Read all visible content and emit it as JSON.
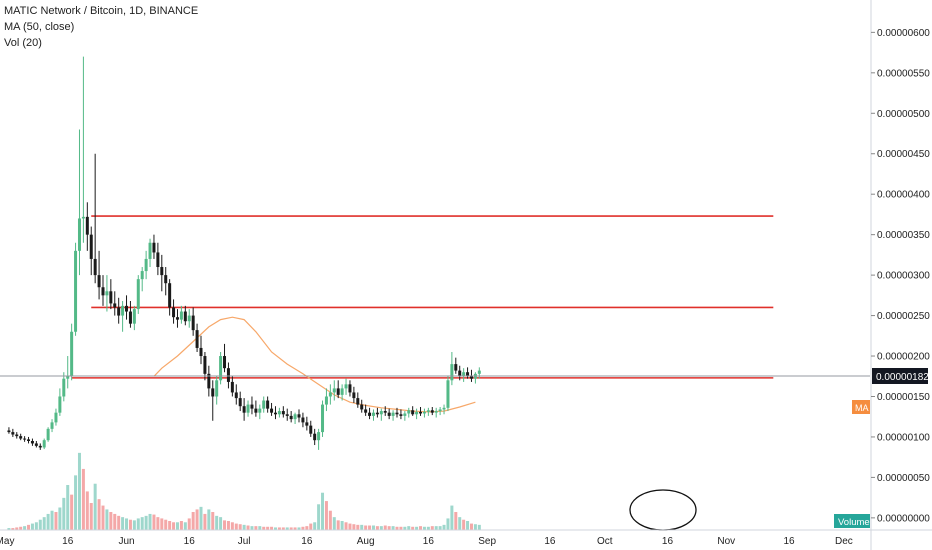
{
  "chart": {
    "title": "MATIC Network / Bitcoin, 1D, BINANCE",
    "indicators": [
      "MA (50, close)",
      "Vol (20)"
    ],
    "current_price_label": "0.00000182",
    "ma_tag": "MA",
    "volume_tag": "Volume"
  },
  "colors": {
    "up": "#53b987",
    "down": "#1a1a1a",
    "vol_up": "#9ed7cc",
    "vol_down": "#f4a8a8",
    "ma": "#f7a86a",
    "hline": "#e0302b",
    "price_tag_bg": "#131722",
    "ma_tag_bg": "#f58d3f",
    "volume_tag_bg": "#26a69a",
    "crosshair": "#9598a1"
  },
  "chart_data": {
    "type": "candlestick",
    "title": "MATIC Network / Bitcoin, 1D, BINANCE",
    "y_ticks": [
      "0.00000600",
      "0.00000550",
      "0.00000500",
      "0.00000450",
      "0.00000400",
      "0.00000350",
      "0.00000300",
      "0.00000250",
      "0.00000200",
      "0.00000150",
      "0.00000100",
      "0.00000050",
      "0.00000000"
    ],
    "y_tick_values": [
      600,
      550,
      500,
      450,
      400,
      350,
      300,
      250,
      200,
      150,
      100,
      50,
      0
    ],
    "y_unit_scale": 1e-08,
    "ylim": [
      -15,
      640
    ],
    "x_ticks": [
      "May",
      "16",
      "Jun",
      "16",
      "Jul",
      "16",
      "Aug",
      "16",
      "Sep",
      "16",
      "Oct",
      "16",
      "Nov",
      "16",
      "Dec"
    ],
    "x_tick_days": [
      0,
      16,
      31,
      47,
      61,
      77,
      92,
      108,
      123,
      139,
      153,
      169,
      184,
      200,
      214
    ],
    "xlim": [
      0,
      238
    ],
    "current_price": 182,
    "horizontal_lines": [
      373,
      260,
      173
    ],
    "candles": [
      [
        1,
        108,
        112,
        104,
        106
      ],
      [
        2,
        106,
        110,
        100,
        103
      ],
      [
        3,
        103,
        106,
        98,
        101
      ],
      [
        4,
        101,
        104,
        96,
        98
      ],
      [
        5,
        98,
        101,
        94,
        97
      ],
      [
        6,
        97,
        100,
        92,
        95
      ],
      [
        7,
        95,
        98,
        89,
        92
      ],
      [
        8,
        92,
        95,
        87,
        89
      ],
      [
        9,
        89,
        92,
        84,
        87
      ],
      [
        10,
        87,
        98,
        85,
        96
      ],
      [
        11,
        96,
        112,
        94,
        110
      ],
      [
        12,
        110,
        122,
        106,
        118
      ],
      [
        13,
        118,
        135,
        114,
        130
      ],
      [
        14,
        130,
        160,
        126,
        150
      ],
      [
        15,
        150,
        180,
        144,
        172
      ],
      [
        16,
        172,
        200,
        160,
        175
      ],
      [
        17,
        175,
        240,
        170,
        230
      ],
      [
        18,
        230,
        340,
        225,
        330
      ],
      [
        19,
        330,
        480,
        300,
        370
      ],
      [
        20,
        370,
        570,
        340,
        372
      ],
      [
        21,
        372,
        390,
        330,
        350
      ],
      [
        22,
        350,
        360,
        300,
        320
      ],
      [
        23,
        320,
        450,
        290,
        300
      ],
      [
        24,
        300,
        330,
        270,
        285
      ],
      [
        25,
        285,
        300,
        262,
        275
      ],
      [
        26,
        275,
        300,
        255,
        280
      ],
      [
        27,
        280,
        295,
        258,
        265
      ],
      [
        28,
        265,
        280,
        250,
        260
      ],
      [
        29,
        260,
        272,
        240,
        250
      ],
      [
        30,
        250,
        268,
        230,
        262
      ],
      [
        31,
        262,
        275,
        245,
        255
      ],
      [
        32,
        255,
        268,
        235,
        240
      ],
      [
        33,
        240,
        262,
        232,
        258
      ],
      [
        34,
        258,
        300,
        252,
        295
      ],
      [
        35,
        295,
        310,
        280,
        305
      ],
      [
        36,
        305,
        330,
        295,
        320
      ],
      [
        37,
        320,
        345,
        310,
        340
      ],
      [
        38,
        340,
        350,
        320,
        328
      ],
      [
        39,
        328,
        340,
        300,
        310
      ],
      [
        40,
        310,
        325,
        280,
        300
      ],
      [
        41,
        300,
        310,
        275,
        290
      ],
      [
        42,
        290,
        295,
        250,
        260
      ],
      [
        43,
        260,
        270,
        240,
        248
      ],
      [
        44,
        248,
        258,
        235,
        245
      ],
      [
        45,
        245,
        262,
        240,
        255
      ],
      [
        46,
        255,
        262,
        238,
        243
      ],
      [
        47,
        243,
        258,
        235,
        250
      ],
      [
        48,
        250,
        260,
        225,
        232
      ],
      [
        49,
        232,
        240,
        205,
        210
      ],
      [
        50,
        210,
        225,
        190,
        200
      ],
      [
        51,
        200,
        205,
        170,
        178
      ],
      [
        52,
        178,
        188,
        150,
        160
      ],
      [
        53,
        160,
        170,
        120,
        150
      ],
      [
        54,
        150,
        175,
        140,
        170
      ],
      [
        55,
        170,
        205,
        165,
        200
      ],
      [
        56,
        200,
        215,
        180,
        185
      ],
      [
        57,
        185,
        192,
        160,
        168
      ],
      [
        58,
        168,
        175,
        150,
        155
      ],
      [
        59,
        155,
        165,
        140,
        148
      ],
      [
        60,
        148,
        156,
        132,
        138
      ],
      [
        61,
        138,
        148,
        120,
        130
      ],
      [
        62,
        130,
        145,
        125,
        140
      ],
      [
        63,
        140,
        150,
        128,
        135
      ],
      [
        64,
        135,
        145,
        125,
        130
      ],
      [
        65,
        130,
        140,
        122,
        135
      ],
      [
        66,
        135,
        150,
        130,
        145
      ],
      [
        67,
        145,
        150,
        130,
        135
      ],
      [
        68,
        135,
        142,
        126,
        130
      ],
      [
        69,
        130,
        138,
        122,
        128
      ],
      [
        70,
        128,
        136,
        124,
        132
      ],
      [
        71,
        132,
        138,
        124,
        128
      ],
      [
        72,
        128,
        135,
        120,
        126
      ],
      [
        73,
        126,
        132,
        118,
        122
      ],
      [
        74,
        122,
        130,
        116,
        128
      ],
      [
        75,
        128,
        134,
        118,
        124
      ],
      [
        76,
        124,
        130,
        112,
        118
      ],
      [
        77,
        118,
        125,
        108,
        114
      ],
      [
        78,
        114,
        120,
        100,
        104
      ],
      [
        79,
        104,
        110,
        90,
        96
      ],
      [
        80,
        96,
        110,
        84,
        106
      ],
      [
        81,
        106,
        145,
        100,
        140
      ],
      [
        82,
        140,
        160,
        132,
        150
      ],
      [
        83,
        150,
        165,
        140,
        155
      ],
      [
        84,
        155,
        170,
        145,
        160
      ],
      [
        85,
        160,
        170,
        148,
        152
      ],
      [
        86,
        152,
        165,
        145,
        160
      ],
      [
        87,
        160,
        172,
        152,
        165
      ],
      [
        88,
        165,
        170,
        150,
        155
      ],
      [
        89,
        155,
        162,
        142,
        148
      ],
      [
        90,
        148,
        155,
        136,
        140
      ],
      [
        91,
        140,
        146,
        130,
        134
      ],
      [
        92,
        134,
        140,
        126,
        130
      ],
      [
        93,
        130,
        136,
        122,
        126
      ],
      [
        94,
        126,
        134,
        120,
        130
      ],
      [
        95,
        130,
        136,
        124,
        128
      ],
      [
        96,
        128,
        135,
        120,
        132
      ],
      [
        97,
        132,
        138,
        126,
        130
      ],
      [
        98,
        130,
        135,
        122,
        126
      ],
      [
        99,
        126,
        133,
        120,
        130
      ],
      [
        100,
        130,
        136,
        124,
        128
      ],
      [
        101,
        128,
        134,
        122,
        126
      ],
      [
        102,
        126,
        132,
        120,
        129
      ],
      [
        103,
        129,
        136,
        124,
        133
      ],
      [
        104,
        133,
        138,
        126,
        128
      ],
      [
        105,
        128,
        135,
        122,
        131
      ],
      [
        106,
        131,
        137,
        126,
        129
      ],
      [
        107,
        129,
        135,
        124,
        131
      ],
      [
        108,
        131,
        136,
        126,
        133
      ],
      [
        109,
        133,
        137,
        127,
        130
      ],
      [
        110,
        130,
        136,
        124,
        132
      ],
      [
        111,
        132,
        137,
        127,
        134
      ],
      [
        112,
        134,
        140,
        128,
        136
      ],
      [
        113,
        136,
        176,
        132,
        170
      ],
      [
        114,
        170,
        205,
        164,
        190
      ],
      [
        115,
        190,
        198,
        178,
        182
      ],
      [
        116,
        182,
        188,
        170,
        175
      ],
      [
        117,
        175,
        185,
        168,
        180
      ],
      [
        118,
        180,
        186,
        172,
        176
      ],
      [
        119,
        176,
        183,
        168,
        172
      ],
      [
        120,
        172,
        180,
        166,
        178
      ],
      [
        121,
        178,
        186,
        172,
        182
      ]
    ],
    "ma": [
      [
        38,
        175
      ],
      [
        40,
        185
      ],
      [
        44,
        200
      ],
      [
        48,
        218
      ],
      [
        52,
        236
      ],
      [
        55,
        245
      ],
      [
        58,
        248
      ],
      [
        61,
        245
      ],
      [
        64,
        230
      ],
      [
        68,
        205
      ],
      [
        72,
        190
      ],
      [
        76,
        178
      ],
      [
        80,
        165
      ],
      [
        84,
        152
      ],
      [
        88,
        143
      ],
      [
        92,
        139
      ],
      [
        96,
        136
      ],
      [
        100,
        134
      ],
      [
        104,
        132
      ],
      [
        108,
        131
      ],
      [
        112,
        132
      ],
      [
        116,
        137
      ],
      [
        120,
        143
      ]
    ],
    "volume_ylim": [
      0,
      140
    ],
    "volume": [
      [
        1,
        3,
        1
      ],
      [
        2,
        3,
        0
      ],
      [
        3,
        4,
        0
      ],
      [
        4,
        5,
        0
      ],
      [
        5,
        6,
        1
      ],
      [
        6,
        8,
        0
      ],
      [
        7,
        10,
        1
      ],
      [
        8,
        12,
        1
      ],
      [
        9,
        16,
        1
      ],
      [
        10,
        20,
        1
      ],
      [
        11,
        25,
        1
      ],
      [
        12,
        30,
        1
      ],
      [
        13,
        28,
        0
      ],
      [
        14,
        35,
        1
      ],
      [
        15,
        50,
        1
      ],
      [
        16,
        70,
        1
      ],
      [
        17,
        55,
        0
      ],
      [
        18,
        85,
        1
      ],
      [
        19,
        120,
        1
      ],
      [
        20,
        95,
        0
      ],
      [
        21,
        60,
        0
      ],
      [
        22,
        42,
        0
      ],
      [
        23,
        72,
        1
      ],
      [
        24,
        48,
        0
      ],
      [
        25,
        38,
        0
      ],
      [
        26,
        32,
        1
      ],
      [
        27,
        28,
        0
      ],
      [
        28,
        25,
        0
      ],
      [
        29,
        22,
        0
      ],
      [
        30,
        20,
        1
      ],
      [
        31,
        18,
        1
      ],
      [
        32,
        16,
        0
      ],
      [
        33,
        15,
        1
      ],
      [
        34,
        18,
        1
      ],
      [
        35,
        20,
        1
      ],
      [
        36,
        22,
        1
      ],
      [
        37,
        25,
        1
      ],
      [
        38,
        24,
        0
      ],
      [
        39,
        20,
        0
      ],
      [
        40,
        18,
        0
      ],
      [
        41,
        16,
        0
      ],
      [
        42,
        14,
        0
      ],
      [
        43,
        12,
        0
      ],
      [
        44,
        12,
        1
      ],
      [
        45,
        14,
        0
      ],
      [
        46,
        12,
        1
      ],
      [
        47,
        18,
        0
      ],
      [
        48,
        28,
        0
      ],
      [
        49,
        32,
        0
      ],
      [
        50,
        36,
        1
      ],
      [
        51,
        25,
        0
      ],
      [
        52,
        32,
        1
      ],
      [
        53,
        28,
        0
      ],
      [
        54,
        22,
        1
      ],
      [
        55,
        20,
        1
      ],
      [
        56,
        15,
        0
      ],
      [
        57,
        14,
        0
      ],
      [
        58,
        12,
        0
      ],
      [
        59,
        10,
        0
      ],
      [
        60,
        9,
        0
      ],
      [
        61,
        8,
        1
      ],
      [
        62,
        7,
        0
      ],
      [
        63,
        6,
        1
      ],
      [
        64,
        6,
        0
      ],
      [
        65,
        6,
        1
      ],
      [
        66,
        5,
        0
      ],
      [
        67,
        5,
        0
      ],
      [
        68,
        5,
        0
      ],
      [
        69,
        4,
        1
      ],
      [
        70,
        4,
        0
      ],
      [
        71,
        4,
        0
      ],
      [
        72,
        4,
        1
      ],
      [
        73,
        4,
        0
      ],
      [
        74,
        4,
        0
      ],
      [
        75,
        4,
        1
      ],
      [
        76,
        5,
        0
      ],
      [
        77,
        6,
        0
      ],
      [
        78,
        10,
        0
      ],
      [
        79,
        12,
        1
      ],
      [
        80,
        40,
        1
      ],
      [
        81,
        58,
        1
      ],
      [
        82,
        45,
        0
      ],
      [
        83,
        30,
        0
      ],
      [
        84,
        20,
        1
      ],
      [
        85,
        15,
        0
      ],
      [
        86,
        14,
        1
      ],
      [
        87,
        12,
        0
      ],
      [
        88,
        10,
        0
      ],
      [
        89,
        9,
        0
      ],
      [
        90,
        8,
        0
      ],
      [
        91,
        8,
        1
      ],
      [
        92,
        7,
        0
      ],
      [
        93,
        7,
        0
      ],
      [
        94,
        7,
        1
      ],
      [
        95,
        6,
        0
      ],
      [
        96,
        6,
        1
      ],
      [
        97,
        7,
        0
      ],
      [
        98,
        6,
        0
      ],
      [
        99,
        6,
        1
      ],
      [
        100,
        5,
        0
      ],
      [
        101,
        5,
        0
      ],
      [
        102,
        5,
        1
      ],
      [
        103,
        6,
        1
      ],
      [
        104,
        5,
        0
      ],
      [
        105,
        5,
        1
      ],
      [
        106,
        6,
        0
      ],
      [
        107,
        5,
        1
      ],
      [
        108,
        5,
        1
      ],
      [
        109,
        6,
        0
      ],
      [
        110,
        6,
        1
      ],
      [
        111,
        6,
        1
      ],
      [
        112,
        8,
        1
      ],
      [
        113,
        18,
        1
      ],
      [
        114,
        38,
        1
      ],
      [
        115,
        28,
        0
      ],
      [
        116,
        20,
        1
      ],
      [
        117,
        16,
        0
      ],
      [
        118,
        14,
        1
      ],
      [
        119,
        10,
        0
      ],
      [
        120,
        9,
        1
      ],
      [
        121,
        8,
        1
      ]
    ]
  }
}
